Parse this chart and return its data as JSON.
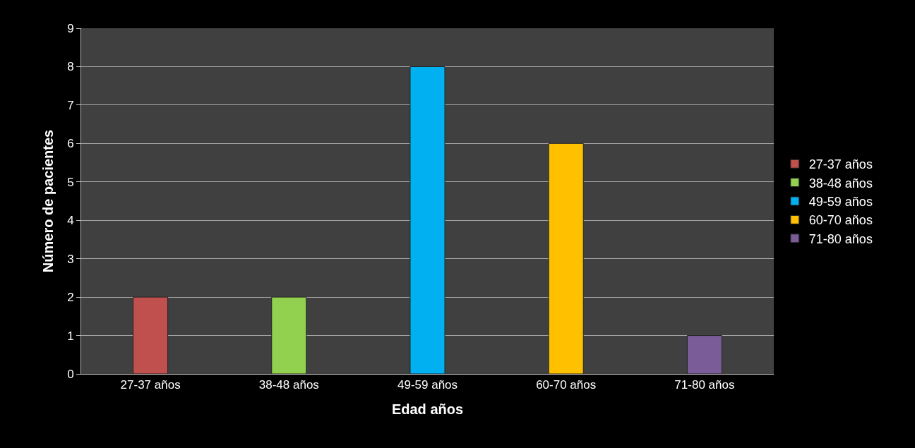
{
  "chart_data": {
    "type": "bar",
    "xlabel": "Edad años",
    "ylabel": "Número de pacientes",
    "categories": [
      "27-37 años",
      "38-48 años",
      "49-59 años",
      "60-70 años",
      "71-80 años"
    ],
    "series": [
      {
        "name": "27-37 años",
        "color": "#c0504d",
        "values": [
          2,
          null,
          null,
          null,
          null
        ]
      },
      {
        "name": "38-48 años",
        "color": "#92d050",
        "values": [
          null,
          2,
          null,
          null,
          null
        ]
      },
      {
        "name": "49-59 años",
        "color": "#00b0f0",
        "values": [
          null,
          null,
          8,
          null,
          null
        ]
      },
      {
        "name": "60-70 años",
        "color": "#ffc000",
        "values": [
          null,
          null,
          null,
          6,
          null
        ]
      },
      {
        "name": "71-80 años",
        "color": "#7a5c99",
        "values": [
          null,
          null,
          null,
          null,
          1
        ]
      }
    ],
    "ylim": [
      0,
      9
    ],
    "yticks": [
      0,
      1,
      2,
      3,
      4,
      5,
      6,
      7,
      8,
      9
    ],
    "grid": "y",
    "legend": "right"
  }
}
